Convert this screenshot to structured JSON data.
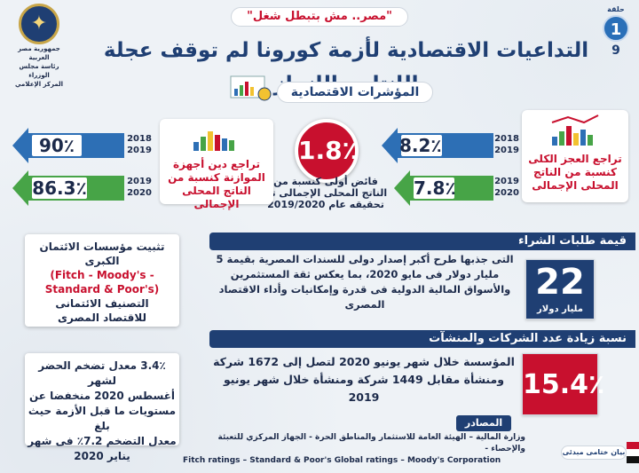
{
  "header": {
    "subtitle": "\"مصر.. مش بتبطل شغل\"",
    "title": "التداعيات الاقتصادية لأزمة كورونا لم توقف عجلة الإنتاج والإنجاز",
    "issue_label": "حلقة",
    "issue_number": "1",
    "page_number": "9",
    "logo_lines": [
      "جمهورية مصر العربية",
      "رئاسة مجلس الوزراء",
      "المركز الإعلامي"
    ]
  },
  "section_title": "المؤشرات الاقتصادية",
  "indicators": {
    "budget_surplus": {
      "value": "1.8٪",
      "text": "فائض أولى كنسبة من الناتج المحلى الإجمالى تم تحقيقه عام 2019/2020"
    },
    "deficit": {
      "title": "تراجع العجز الكلى كنسبة من الناتج المحلى الإجمالى",
      "row1": {
        "value": "8.2٪",
        "year_a": "2018",
        "year_b": "2019"
      },
      "row2": {
        "value": "7.8٪",
        "year_a": "2019",
        "year_b": "2020"
      }
    },
    "debt": {
      "title": "تراجع دين أجهزة الموازنة كنسبة من الناتج المحلى الإجمالى",
      "row1": {
        "value": "90٪",
        "year_a": "2018",
        "year_b": "2019"
      },
      "row2": {
        "value": "86.3٪",
        "year_a": "2019",
        "year_b": "2020"
      }
    }
  },
  "rating_box": {
    "line1": "تثبيت مؤسسات  الائتمان الكبرى",
    "line2": "(Fitch - Moody's -",
    "line3": "Standard & Poor's)",
    "line4": "التصنيف الائتمانى",
    "line5": "للاقتصاد المصرى"
  },
  "inflation_box": {
    "line1": "3.4٪ معدل تضخم الحضر لشهر",
    "line2": "أغسطس 2020 منخفضا عن",
    "line3": "مستويات ما قبل الأزمة حيث بلغ",
    "line4": "معدل التضخم 7.2٪ فى شهر",
    "line5": "يناير 2020"
  },
  "purchase_orders": {
    "banner": "قيمة طلبات الشراء",
    "text": "التى جذبها طرح أكبر إصدار دولى للسندات المصرية بقيمة 5 مليار دولار فى مايو 2020، بما يعكس ثقة المستثمرين والأسواق المالية الدولية فى قدرة وإمكانيات وأداء الاقتصاد المصرى",
    "value": "22",
    "unit": "مليار دولار"
  },
  "companies_growth": {
    "banner": "نسبة زيادة عدد الشركات والمنشآت",
    "text": "المؤسسة خلال شهر يونيو 2020 لتصل إلى 1672 شركة ومنشأة مقابل 1449 شركة ومنشأة خلال شهر يونيو 2019",
    "value": "15.4٪"
  },
  "sources": {
    "label": "المصادر",
    "text_ar": "وزارة المالية – الهيئة العامة للاستثمار والمناطق الحرة - الجهاز المركزي للتعبئة والإحصاء -",
    "text_en": "Fitch ratings – Standard & Poor's Global ratings – Moody's Corporation"
  },
  "footer": {
    "badge": "بيان ختامى مبدئى"
  },
  "colors": {
    "navy": "#1f3f73",
    "red": "#c8102e",
    "green": "#3d9a3d",
    "blue_arrow": "#2d6fb5",
    "green_arrow": "#47a447"
  }
}
